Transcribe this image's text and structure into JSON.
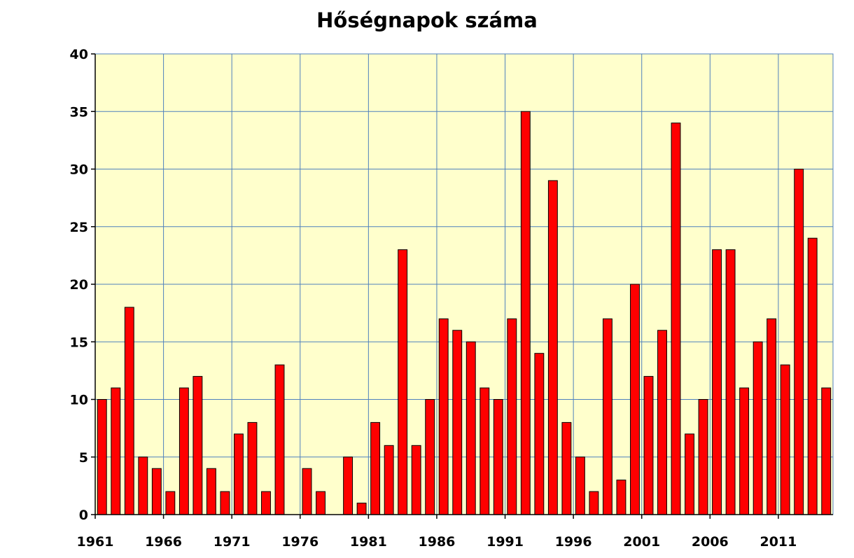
{
  "chart_data": {
    "type": "bar",
    "title": "Hőségnapok száma",
    "xlabel": "",
    "ylabel": "",
    "ylim": [
      0,
      40
    ],
    "yticks": [
      0,
      5,
      10,
      15,
      20,
      25,
      30,
      35,
      40
    ],
    "xtick_labels": [
      "1961",
      "1966",
      "1971",
      "1976",
      "1981",
      "1986",
      "1991",
      "1996",
      "2001",
      "2006",
      "2011"
    ],
    "grid": true,
    "legend": "none",
    "categories": [
      1961,
      1962,
      1963,
      1964,
      1965,
      1966,
      1967,
      1968,
      1969,
      1970,
      1971,
      1972,
      1973,
      1974,
      1975,
      1976,
      1977,
      1978,
      1979,
      1980,
      1981,
      1982,
      1983,
      1984,
      1985,
      1986,
      1987,
      1988,
      1989,
      1990,
      1991,
      1992,
      1993,
      1994,
      1995,
      1996,
      1997,
      1998,
      1999,
      2000,
      2001,
      2002,
      2003,
      2004,
      2005,
      2006,
      2007,
      2008,
      2009,
      2010,
      2011,
      2012,
      2013,
      2014
    ],
    "values": [
      10,
      11,
      18,
      5,
      4,
      2,
      11,
      12,
      4,
      2,
      7,
      8,
      2,
      13,
      0,
      4,
      2,
      0,
      5,
      1,
      8,
      6,
      23,
      6,
      10,
      17,
      16,
      15,
      11,
      10,
      17,
      35,
      14,
      29,
      8,
      5,
      2,
      17,
      3,
      20,
      12,
      16,
      34,
      7,
      10,
      23,
      23,
      11,
      15,
      17,
      13,
      30,
      24,
      11
    ],
    "colors": {
      "bar_fill": "#ff0000",
      "bar_stroke": "#000000",
      "plot_background": "#ffffcc",
      "grid": "#4f81bd"
    }
  }
}
